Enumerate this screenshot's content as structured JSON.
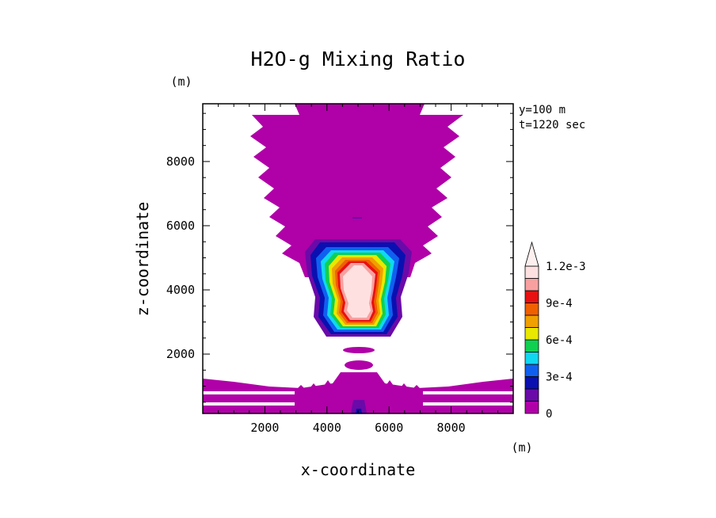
{
  "chart_data": {
    "type": "heatmap",
    "title": "H2O-g Mixing Ratio",
    "xlabel": "x-coordinate",
    "ylabel": "z-coordinate",
    "x_unit": "(m)",
    "y_unit": "(m)",
    "annotations": [
      "y=100 m",
      "t=1220 sec"
    ],
    "xlim": [
      0,
      10000
    ],
    "ylim": [
      150,
      9800
    ],
    "x_ticks": [
      2000,
      4000,
      6000,
      8000
    ],
    "x_tick_labels": [
      "2000",
      "4000",
      "6000",
      "8000"
    ],
    "y_ticks": [
      2000,
      4000,
      6000,
      8000
    ],
    "y_tick_labels": [
      "2000",
      "4000",
      "6000",
      "8000"
    ],
    "colorbar": {
      "levels": [
        0,
        0.00015,
        0.0003,
        0.00045,
        0.0006,
        0.00075,
        0.0009,
        0.00105,
        0.0012
      ],
      "tick_labels": [
        "0",
        "3e-4",
        "6e-4",
        "9e-4",
        "1.2e-3"
      ],
      "colors": [
        "#b000a8",
        "#6a0aa8",
        "#0a10b0",
        "#1060f0",
        "#10d8f0",
        "#10d050",
        "#e8e800",
        "#f0a000",
        "#f06000",
        "#e81010",
        "#f8a0a0",
        "#ffe0e0"
      ],
      "extend": "max"
    },
    "features": [
      {
        "region": "upper anvil",
        "x": [
          2000,
          8000
        ],
        "z": [
          5500,
          9600
        ],
        "level": 0
      },
      {
        "region": "cloud core",
        "x": [
          3800,
          6200
        ],
        "z": [
          2600,
          5200
        ],
        "level_max": 0.0012
      },
      {
        "region": "boundary layer",
        "x": [
          0,
          10000
        ],
        "z": [
          150,
          1200
        ],
        "level": 0
      }
    ]
  },
  "colors": {
    "magenta": "#b000a8",
    "core": "#ffe0e0"
  }
}
